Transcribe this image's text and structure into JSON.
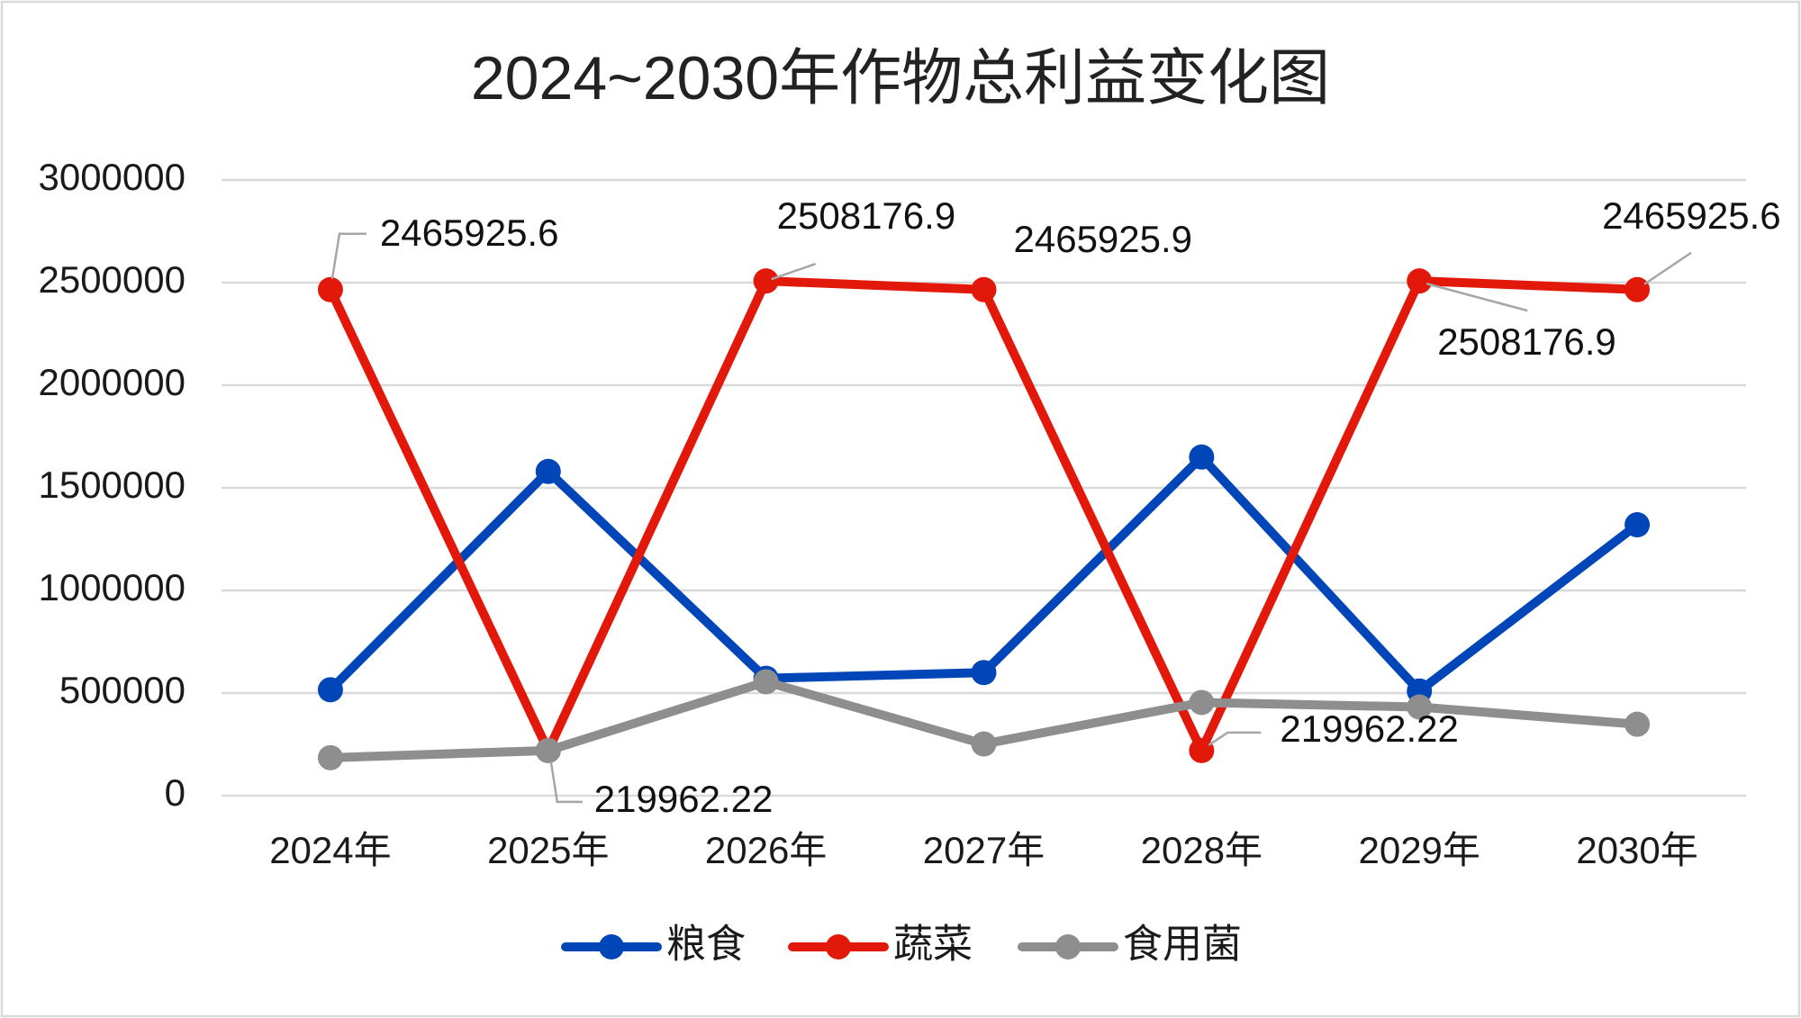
{
  "chart_data": {
    "type": "line",
    "title": "2024~2030年作物总利益变化图",
    "xlabel": "",
    "ylabel": "",
    "categories": [
      "2024年",
      "2025年",
      "2026年",
      "2027年",
      "2028年",
      "2029年",
      "2030年"
    ],
    "ylim": [
      0,
      3000000
    ],
    "yticks": [
      0,
      500000,
      1000000,
      1500000,
      2000000,
      2500000,
      3000000
    ],
    "grid": true,
    "legend_position": "bottom",
    "series": [
      {
        "name": "粮食",
        "color": "#0046b8",
        "values": [
          516000,
          1580000,
          572000,
          600000,
          1650000,
          510000,
          1320000
        ]
      },
      {
        "name": "蔬菜",
        "color": "#e2190a",
        "values": [
          2465925.6,
          219962.22,
          2508176.9,
          2465925.9,
          219962.22,
          2508176.9,
          2465925.6
        ],
        "data_labels_shown": true
      },
      {
        "name": "食用菌",
        "color": "#8e8e8e",
        "values": [
          185000,
          220000,
          555000,
          252000,
          454000,
          432000,
          348000
        ]
      }
    ]
  }
}
